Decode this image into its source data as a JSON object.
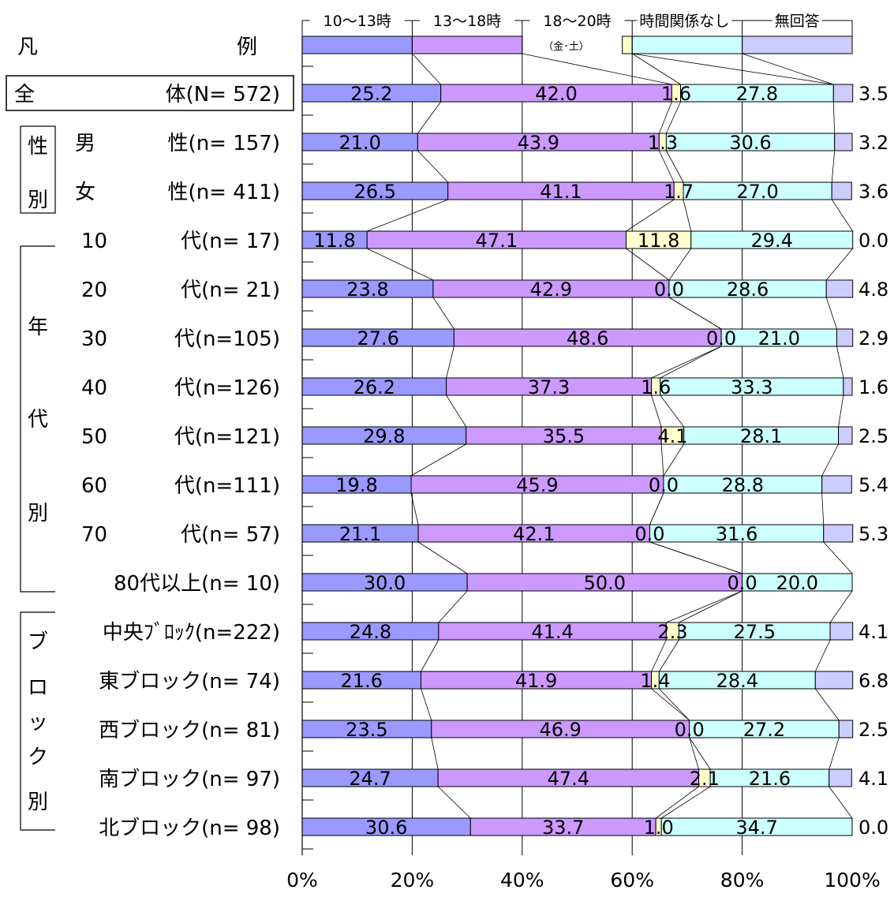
{
  "chart_data": {
    "type": "bar",
    "orientation": "horizontal",
    "stacked": true,
    "percent": true,
    "legend_title_parts": [
      "凡",
      "例"
    ],
    "legend": [
      "10～13時",
      "13～18時",
      "18～20時",
      "時間関係なし",
      "無回答"
    ],
    "legend_sub": "（金･土）",
    "series_colors": [
      "#9999ff",
      "#cc99ff",
      "#ffffcc",
      "#ccffff",
      "#ccccff"
    ],
    "xlim": [
      0,
      100
    ],
    "x_ticks": [
      "0%",
      "20%",
      "40%",
      "60%",
      "80%",
      "100%"
    ],
    "group_labels": [
      "性別",
      "年代別",
      "ブロック別"
    ],
    "rows": [
      {
        "left": "全",
        "right": "体(N= 572)",
        "values": [
          25.2,
          42.0,
          1.6,
          27.8,
          3.5
        ],
        "labels": [
          "25.2",
          "42.0",
          "1.6",
          "27.8",
          "3.5"
        ]
      },
      {
        "left": "男",
        "right": "性(n= 157)",
        "values": [
          21.0,
          43.9,
          1.3,
          30.6,
          3.2
        ],
        "labels": [
          "21.0",
          "43.9",
          "1.3",
          "30.6",
          "3.2"
        ]
      },
      {
        "left": "女",
        "right": "性(n= 411)",
        "values": [
          26.5,
          41.1,
          1.7,
          27.0,
          3.6
        ],
        "labels": [
          "26.5",
          "41.1",
          "1.7",
          "27.0",
          "3.6"
        ]
      },
      {
        "left": "10",
        "right": "代(n=  17)",
        "values": [
          11.8,
          47.1,
          11.8,
          29.4,
          0.0
        ],
        "labels": [
          "11.8",
          "47.1",
          "11.8",
          "29.4",
          "0.0"
        ]
      },
      {
        "left": "20",
        "right": "代(n=  21)",
        "values": [
          23.8,
          42.9,
          0.0,
          28.6,
          4.8
        ],
        "labels": [
          "23.8",
          "42.9",
          "0.0",
          "28.6",
          "4.8"
        ]
      },
      {
        "left": "30",
        "right": "代(n=105)",
        "values": [
          27.6,
          48.6,
          0.0,
          21.0,
          2.9
        ],
        "labels": [
          "27.6",
          "48.6",
          "0.0",
          "21.0",
          "2.9"
        ]
      },
      {
        "left": "40",
        "right": "代(n=126)",
        "values": [
          26.2,
          37.3,
          1.6,
          33.3,
          1.6
        ],
        "labels": [
          "26.2",
          "37.3",
          "1.6",
          "33.3",
          "1.6"
        ]
      },
      {
        "left": "50",
        "right": "代(n=121)",
        "values": [
          29.8,
          35.5,
          4.1,
          28.1,
          2.5
        ],
        "labels": [
          "29.8",
          "35.5",
          "4.1",
          "28.1",
          "2.5"
        ]
      },
      {
        "left": "60",
        "right": "代(n=111)",
        "values": [
          19.8,
          45.9,
          0.0,
          28.8,
          5.4
        ],
        "labels": [
          "19.8",
          "45.9",
          "0.0",
          "28.8",
          "5.4"
        ]
      },
      {
        "left": "70",
        "right": "代(n=  57)",
        "values": [
          21.1,
          42.1,
          0.0,
          31.6,
          5.3
        ],
        "labels": [
          "21.1",
          "42.1",
          "0.0",
          "31.6",
          "5.3"
        ]
      },
      {
        "left": "",
        "right": "80代以上(n=  10)",
        "values": [
          30.0,
          50.0,
          0.0,
          20.0,
          0.0
        ],
        "labels": [
          "30.0",
          "50.0",
          "0.0",
          "20.0",
          ""
        ]
      },
      {
        "left": "",
        "right": "中央ﾌﾞﾛｯｸ(n=222)",
        "values": [
          24.8,
          41.4,
          2.3,
          27.5,
          4.1
        ],
        "labels": [
          "24.8",
          "41.4",
          "2.3",
          "27.5",
          "4.1"
        ]
      },
      {
        "left": "",
        "right": "東ブロック(n=  74)",
        "values": [
          21.6,
          41.9,
          1.4,
          28.4,
          6.8
        ],
        "labels": [
          "21.6",
          "41.9",
          "1.4",
          "28.4",
          "6.8"
        ]
      },
      {
        "left": "",
        "right": "西ブロック(n=  81)",
        "values": [
          23.5,
          46.9,
          0.0,
          27.2,
          2.5
        ],
        "labels": [
          "23.5",
          "46.9",
          "0.0",
          "27.2",
          "2.5"
        ]
      },
      {
        "left": "",
        "right": "南ブロック(n=  97)",
        "values": [
          24.7,
          47.4,
          2.1,
          21.6,
          4.1
        ],
        "labels": [
          "24.7",
          "47.4",
          "2.1",
          "21.6",
          "4.1"
        ]
      },
      {
        "left": "",
        "right": "北ブロック(n=  98)",
        "values": [
          30.6,
          33.7,
          1.0,
          34.7,
          0.0
        ],
        "labels": [
          "30.6",
          "33.7",
          "1.0",
          "34.7",
          "0.0"
        ]
      }
    ]
  }
}
